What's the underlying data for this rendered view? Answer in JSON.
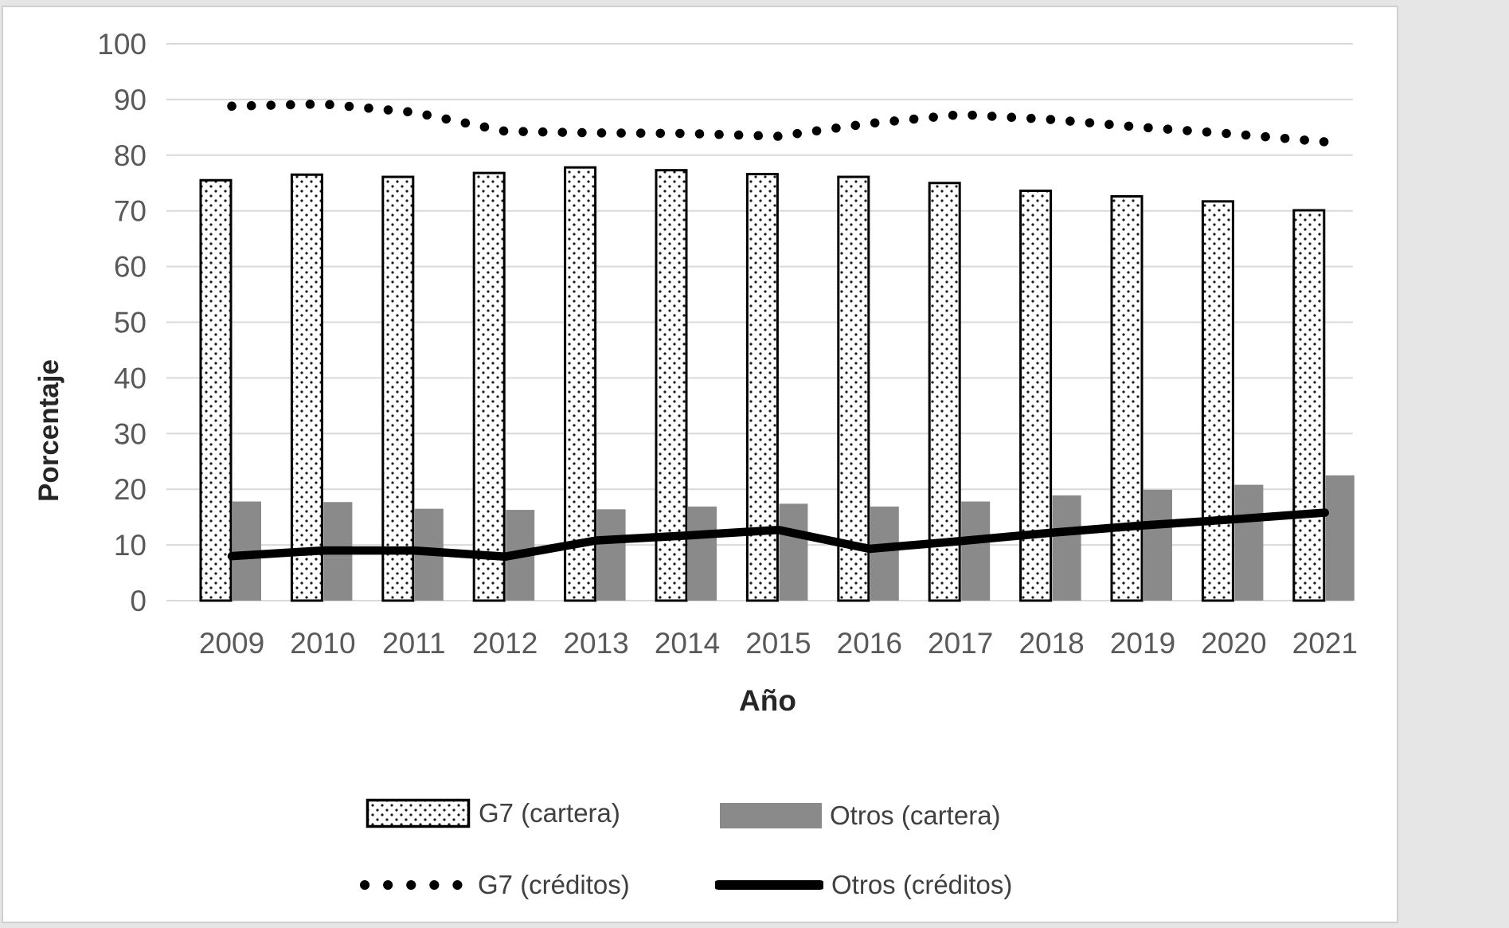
{
  "colors": {
    "bar_gray": "#8a8a8a",
    "line_black": "#000000",
    "grid": "#d9d9d9",
    "tick_label": "#595959",
    "axis_title": "#262626",
    "legend_text": "#404040",
    "chart_border": "#cfcfcf",
    "page_background": "#e6e6e6"
  },
  "chart_data": {
    "type": "combo-bar-line",
    "categories": [
      "2009",
      "2010",
      "2011",
      "2012",
      "2013",
      "2014",
      "2015",
      "2016",
      "2017",
      "2018",
      "2019",
      "2020",
      "2021"
    ],
    "series": [
      {
        "name": "G7 (cartera)",
        "type": "bar",
        "style": "dotted-pattern-white",
        "values": [
          75.5,
          76.5,
          76.1,
          76.8,
          77.8,
          77.3,
          76.6,
          76.1,
          75.0,
          73.6,
          72.6,
          71.7,
          70.1
        ]
      },
      {
        "name": "Otros (cartera)",
        "type": "bar",
        "style": "solid-gray",
        "values": [
          17.8,
          17.7,
          16.5,
          16.3,
          16.4,
          16.9,
          17.4,
          16.9,
          17.8,
          18.9,
          19.9,
          20.8,
          22.5
        ]
      },
      {
        "name": "G7 (créditos)",
        "type": "line",
        "style": "dotted",
        "values": [
          88.8,
          89.2,
          87.7,
          84.3,
          84.0,
          83.9,
          83.4,
          85.7,
          87.3,
          86.4,
          85.0,
          83.8,
          82.4
        ]
      },
      {
        "name": "Otros (créditos)",
        "type": "line",
        "style": "solid-thick",
        "values": [
          8.0,
          9.0,
          9.0,
          7.9,
          10.8,
          11.7,
          12.7,
          9.3,
          10.7,
          12.2,
          13.5,
          14.6,
          15.8
        ]
      }
    ],
    "xlabel": "Año",
    "ylabel": "Porcentaje",
    "ylim": [
      0,
      100
    ],
    "ytick_step": 10,
    "y_ticks": [
      "0",
      "10",
      "20",
      "30",
      "40",
      "50",
      "60",
      "70",
      "80",
      "90",
      "100"
    ],
    "grid": true,
    "legend_position": "bottom"
  }
}
